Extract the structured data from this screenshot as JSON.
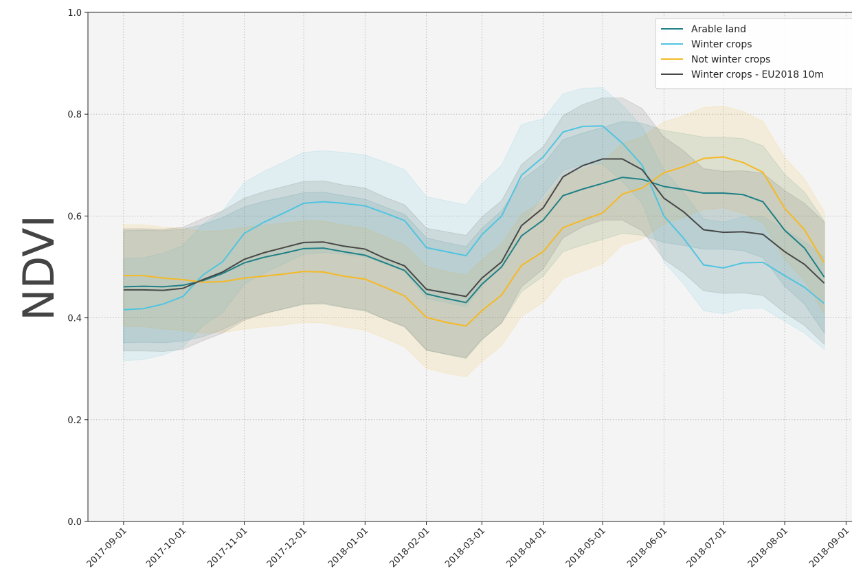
{
  "chart_data": {
    "type": "line",
    "ylabel": "NDVI",
    "x": [
      "2017-09-01",
      "2017-09-11",
      "2017-09-21",
      "2017-10-01",
      "2017-10-11",
      "2017-10-21",
      "2017-11-01",
      "2017-11-11",
      "2017-11-21",
      "2017-12-01",
      "2017-12-11",
      "2017-12-21",
      "2018-01-01",
      "2018-01-11",
      "2018-01-21",
      "2018-02-01",
      "2018-02-11",
      "2018-02-21",
      "2018-03-01",
      "2018-03-11",
      "2018-03-21",
      "2018-04-01",
      "2018-04-11",
      "2018-04-21",
      "2018-05-01",
      "2018-05-11",
      "2018-05-21",
      "2018-06-01",
      "2018-06-11",
      "2018-06-21",
      "2018-07-01",
      "2018-07-11",
      "2018-07-21",
      "2018-08-01",
      "2018-08-11",
      "2018-08-21"
    ],
    "xlim": [
      "2017-08-14",
      "2018-09-04"
    ],
    "xticks": [
      "2017-09-01",
      "2017-10-01",
      "2017-11-01",
      "2017-12-01",
      "2018-01-01",
      "2018-02-01",
      "2018-03-01",
      "2018-04-01",
      "2018-05-01",
      "2018-06-01",
      "2018-07-01",
      "2018-08-01",
      "2018-09-01"
    ],
    "ylim": [
      0,
      1
    ],
    "yticks": [
      {
        "value": 0,
        "label": "0.0"
      },
      0.2,
      0.4,
      0.6,
      0.8,
      {
        "value": 1,
        "label": "1.0"
      }
    ],
    "grid": true,
    "legend": "upper right",
    "series": [
      {
        "name": "Arable land",
        "color": "#1f8086",
        "values": [
          0.461,
          0.462,
          0.461,
          0.464,
          0.473,
          0.487,
          0.508,
          0.519,
          0.527,
          0.536,
          0.537,
          0.53,
          0.523,
          0.508,
          0.493,
          0.447,
          0.438,
          0.43,
          0.466,
          0.5,
          0.561,
          0.592,
          0.64,
          0.653,
          0.664,
          0.676,
          0.672,
          0.658,
          0.652,
          0.645,
          0.645,
          0.642,
          0.628,
          0.572,
          0.537,
          0.48
        ],
        "lower": [
          0.351,
          0.352,
          0.351,
          0.354,
          0.363,
          0.377,
          0.398,
          0.409,
          0.417,
          0.426,
          0.427,
          0.42,
          0.413,
          0.398,
          0.383,
          0.337,
          0.328,
          0.32,
          0.356,
          0.39,
          0.451,
          0.482,
          0.53,
          0.543,
          0.554,
          0.566,
          0.562,
          0.548,
          0.542,
          0.535,
          0.535,
          0.532,
          0.518,
          0.462,
          0.427,
          0.37
        ],
        "upper": [
          0.571,
          0.572,
          0.571,
          0.574,
          0.583,
          0.597,
          0.618,
          0.629,
          0.637,
          0.646,
          0.647,
          0.64,
          0.633,
          0.618,
          0.603,
          0.557,
          0.548,
          0.54,
          0.576,
          0.61,
          0.671,
          0.702,
          0.75,
          0.763,
          0.774,
          0.786,
          0.782,
          0.768,
          0.762,
          0.755,
          0.755,
          0.752,
          0.738,
          0.682,
          0.647,
          0.59
        ]
      },
      {
        "name": "Winter crops",
        "color": "#50c4e0",
        "values": [
          0.416,
          0.418,
          0.427,
          0.442,
          0.484,
          0.51,
          0.566,
          0.588,
          0.606,
          0.625,
          0.628,
          0.625,
          0.62,
          0.606,
          0.591,
          0.538,
          0.53,
          0.522,
          0.563,
          0.6,
          0.68,
          0.716,
          0.765,
          0.776,
          0.777,
          0.743,
          0.7,
          0.6,
          0.556,
          0.504,
          0.498,
          0.508,
          0.509,
          0.483,
          0.46,
          0.428
        ],
        "lower": [
          0.316,
          0.318,
          0.327,
          0.342,
          0.384,
          0.41,
          0.466,
          0.488,
          0.506,
          0.525,
          0.528,
          0.525,
          0.52,
          0.506,
          0.491,
          0.438,
          0.43,
          0.422,
          0.463,
          0.5,
          0.58,
          0.641,
          0.69,
          0.701,
          0.702,
          0.668,
          0.625,
          0.51,
          0.466,
          0.414,
          0.408,
          0.418,
          0.419,
          0.393,
          0.37,
          0.338
        ],
        "upper": [
          0.516,
          0.518,
          0.527,
          0.542,
          0.584,
          0.61,
          0.666,
          0.688,
          0.706,
          0.725,
          0.728,
          0.725,
          0.72,
          0.706,
          0.691,
          0.638,
          0.63,
          0.622,
          0.663,
          0.7,
          0.78,
          0.791,
          0.84,
          0.851,
          0.852,
          0.818,
          0.775,
          0.69,
          0.646,
          0.594,
          0.588,
          0.598,
          0.599,
          0.573,
          0.55,
          0.518
        ]
      },
      {
        "name": "Not winter crops",
        "color": "#f5b925",
        "values": [
          0.483,
          0.483,
          0.478,
          0.475,
          0.47,
          0.471,
          0.478,
          0.482,
          0.486,
          0.491,
          0.49,
          0.482,
          0.476,
          0.46,
          0.443,
          0.401,
          0.391,
          0.384,
          0.414,
          0.445,
          0.503,
          0.53,
          0.577,
          0.592,
          0.606,
          0.643,
          0.655,
          0.685,
          0.697,
          0.713,
          0.716,
          0.705,
          0.686,
          0.615,
          0.573,
          0.508
        ],
        "lower": [
          0.383,
          0.383,
          0.378,
          0.375,
          0.37,
          0.371,
          0.378,
          0.382,
          0.386,
          0.391,
          0.39,
          0.382,
          0.376,
          0.36,
          0.343,
          0.301,
          0.291,
          0.284,
          0.314,
          0.345,
          0.403,
          0.43,
          0.477,
          0.492,
          0.506,
          0.543,
          0.555,
          0.585,
          0.597,
          0.613,
          0.616,
          0.605,
          0.586,
          0.515,
          0.473,
          0.408
        ],
        "upper": [
          0.583,
          0.583,
          0.578,
          0.575,
          0.57,
          0.571,
          0.578,
          0.582,
          0.586,
          0.591,
          0.59,
          0.582,
          0.576,
          0.56,
          0.543,
          0.501,
          0.491,
          0.484,
          0.514,
          0.545,
          0.603,
          0.63,
          0.677,
          0.692,
          0.706,
          0.743,
          0.755,
          0.785,
          0.797,
          0.813,
          0.816,
          0.805,
          0.786,
          0.715,
          0.673,
          0.608
        ]
      },
      {
        "name": "Winter crops - EU2018 10m",
        "color": "#474747",
        "values": [
          0.455,
          0.455,
          0.454,
          0.458,
          0.475,
          0.49,
          0.515,
          0.528,
          0.538,
          0.548,
          0.549,
          0.541,
          0.535,
          0.517,
          0.502,
          0.456,
          0.449,
          0.442,
          0.478,
          0.51,
          0.581,
          0.616,
          0.677,
          0.699,
          0.712,
          0.712,
          0.691,
          0.635,
          0.608,
          0.573,
          0.568,
          0.569,
          0.564,
          0.53,
          0.505,
          0.468
        ],
        "lower": [
          0.335,
          0.335,
          0.334,
          0.338,
          0.355,
          0.37,
          0.395,
          0.408,
          0.418,
          0.428,
          0.429,
          0.421,
          0.415,
          0.397,
          0.382,
          0.336,
          0.329,
          0.322,
          0.358,
          0.39,
          0.461,
          0.496,
          0.557,
          0.579,
          0.592,
          0.592,
          0.571,
          0.515,
          0.488,
          0.453,
          0.448,
          0.449,
          0.444,
          0.41,
          0.385,
          0.348
        ],
        "upper": [
          0.575,
          0.575,
          0.574,
          0.578,
          0.595,
          0.61,
          0.635,
          0.648,
          0.658,
          0.668,
          0.669,
          0.661,
          0.655,
          0.637,
          0.622,
          0.576,
          0.569,
          0.562,
          0.598,
          0.63,
          0.701,
          0.736,
          0.797,
          0.819,
          0.832,
          0.832,
          0.811,
          0.755,
          0.728,
          0.693,
          0.688,
          0.689,
          0.684,
          0.65,
          0.625,
          0.588
        ]
      }
    ]
  }
}
